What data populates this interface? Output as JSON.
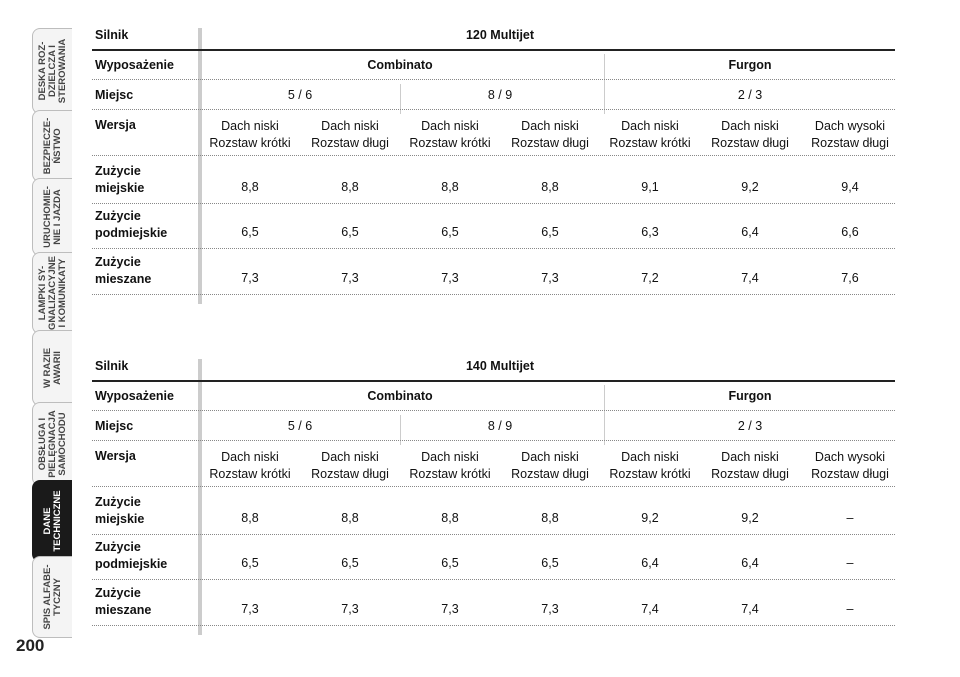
{
  "sidebar": {
    "tabs": [
      {
        "label": "DESKA ROZ-\nDZIELCZA I\nSTEROWANIA",
        "active": false
      },
      {
        "label": "BEZPIECZE-\nŃSTWO",
        "active": false
      },
      {
        "label": "URUCHOMIE-\nNIE I JAZDA",
        "active": false
      },
      {
        "label": "LAMPKI SY-\nGNALIZACYJNE\nI KOMUNIKATY",
        "active": false
      },
      {
        "label": "W RAZIE\nAWARII",
        "active": false
      },
      {
        "label": "OBSŁUGA I\nPIELĘGNACJA\nSAMOCHODU",
        "active": false
      },
      {
        "label": "DANE\nTECHNICZNE",
        "active": true
      },
      {
        "label": "SPIS ALFABE-\nTYCZNY",
        "active": false
      }
    ],
    "page_number": "200"
  },
  "tables": [
    {
      "engine_label": "Silnik",
      "engine": "120 Multijet",
      "equip_label": "Wyposażenie",
      "equip_combinato": "Combinato",
      "equip_furgon": "Furgon",
      "seats_label": "Miejsc",
      "seats": [
        "5 / 6",
        "8 / 9",
        "2 / 3"
      ],
      "version_label": "Wersja",
      "versions": [
        [
          "Dach niski",
          "Rozstaw krótki"
        ],
        [
          "Dach niski",
          "Rozstaw długi"
        ],
        [
          "Dach niski",
          "Rozstaw krótki"
        ],
        [
          "Dach niski",
          "Rozstaw długi"
        ],
        [
          "Dach niski",
          "Rozstaw krótki"
        ],
        [
          "Dach niski",
          "Rozstaw długi"
        ],
        [
          "Dach wysoki",
          "Rozstaw długi"
        ]
      ],
      "rows": [
        {
          "label": [
            "Zużycie",
            "miejskie"
          ],
          "values": [
            "8,8",
            "8,8",
            "8,8",
            "8,8",
            "9,1",
            "9,2",
            "9,4"
          ]
        },
        {
          "label": [
            "Zużycie",
            "podmiejskie"
          ],
          "values": [
            "6,5",
            "6,5",
            "6,5",
            "6,5",
            "6,3",
            "6,4",
            "6,6"
          ]
        },
        {
          "label": [
            "Zużycie",
            "mieszane"
          ],
          "values": [
            "7,3",
            "7,3",
            "7,3",
            "7,3",
            "7,2",
            "7,4",
            "7,6"
          ]
        }
      ]
    },
    {
      "engine_label": "Silnik",
      "engine": "140 Multijet",
      "equip_label": "Wyposażenie",
      "equip_combinato": "Combinato",
      "equip_furgon": "Furgon",
      "seats_label": "Miejsc",
      "seats": [
        "5 / 6",
        "8 / 9",
        "2 / 3"
      ],
      "version_label": "Wersja",
      "versions": [
        [
          "Dach niski",
          "Rozstaw krótki"
        ],
        [
          "Dach niski",
          "Rozstaw długi"
        ],
        [
          "Dach niski",
          "Rozstaw krótki"
        ],
        [
          "Dach niski",
          "Rozstaw długi"
        ],
        [
          "Dach niski",
          "Rozstaw krótki"
        ],
        [
          "Dach niski",
          "Rozstaw długi"
        ],
        [
          "Dach wysoki",
          "Rozstaw długi"
        ]
      ],
      "rows": [
        {
          "label": [
            "Zużycie",
            "miejskie"
          ],
          "values": [
            "8,8",
            "8,8",
            "8,8",
            "8,8",
            "9,2",
            "9,2",
            "–"
          ]
        },
        {
          "label": [
            "Zużycie",
            "podmiejskie"
          ],
          "values": [
            "6,5",
            "6,5",
            "6,5",
            "6,5",
            "6,4",
            "6,4",
            "–"
          ]
        },
        {
          "label": [
            "Zużycie",
            "mieszane"
          ],
          "values": [
            "7,3",
            "7,3",
            "7,3",
            "7,3",
            "7,4",
            "7,4",
            "–"
          ]
        }
      ]
    }
  ]
}
